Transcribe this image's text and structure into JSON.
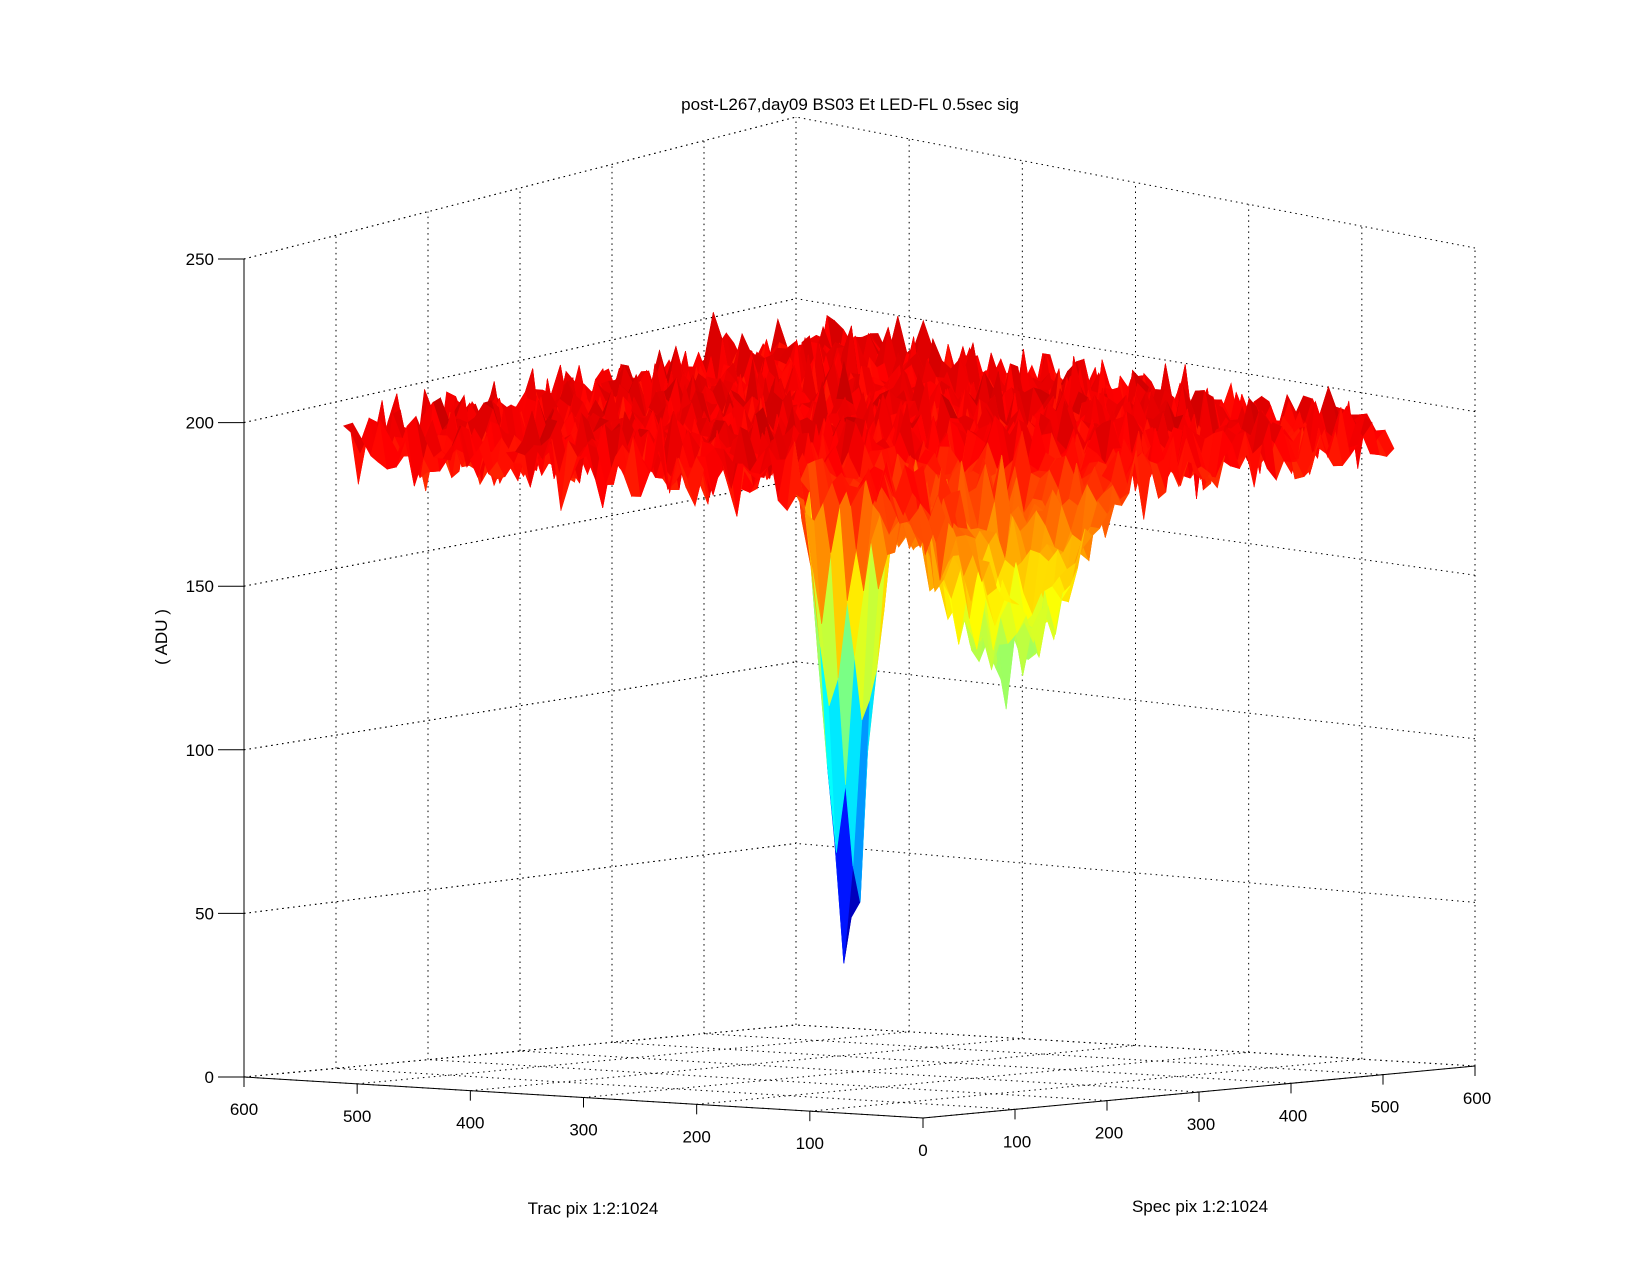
{
  "chart_data": {
    "type": "surface",
    "title": "post-L267,day09 BS03 Et LED-FL 0.5sec sig",
    "xlabel": "Spec pix 1:2:1024",
    "ylabel": "Trac pix 1:2:1024",
    "zlabel": "( ADU )",
    "xlim": [
      0,
      600
    ],
    "ylim": [
      0,
      600
    ],
    "zlim": [
      0,
      250
    ],
    "xticks": [
      0,
      100,
      200,
      300,
      400,
      500,
      600
    ],
    "yticks": [
      0,
      100,
      200,
      300,
      400,
      500,
      600
    ],
    "zticks": [
      0,
      50,
      100,
      150,
      200,
      250
    ],
    "x_tick_labels": [
      "",
      "100",
      "200",
      "300",
      "400",
      "500",
      "600"
    ],
    "y_tick_labels": [
      "0",
      "100",
      "200",
      "300",
      "400",
      "500",
      "600"
    ],
    "z_tick_labels": [
      "0",
      "50",
      "100",
      "150",
      "200",
      "250"
    ],
    "colormap": "jet",
    "color_range": [
      50,
      215
    ],
    "grid": true,
    "surface_model": {
      "baseline_adu": 195,
      "noise_amplitude_adu": 22,
      "features": [
        {
          "name": "narrow dip",
          "spec_pix": 35,
          "trac_pix": 95,
          "min_adu": 50
        },
        {
          "name": "broad dip",
          "spec_pix": 125,
          "trac_pix": 30,
          "min_adu": 125
        }
      ]
    }
  }
}
